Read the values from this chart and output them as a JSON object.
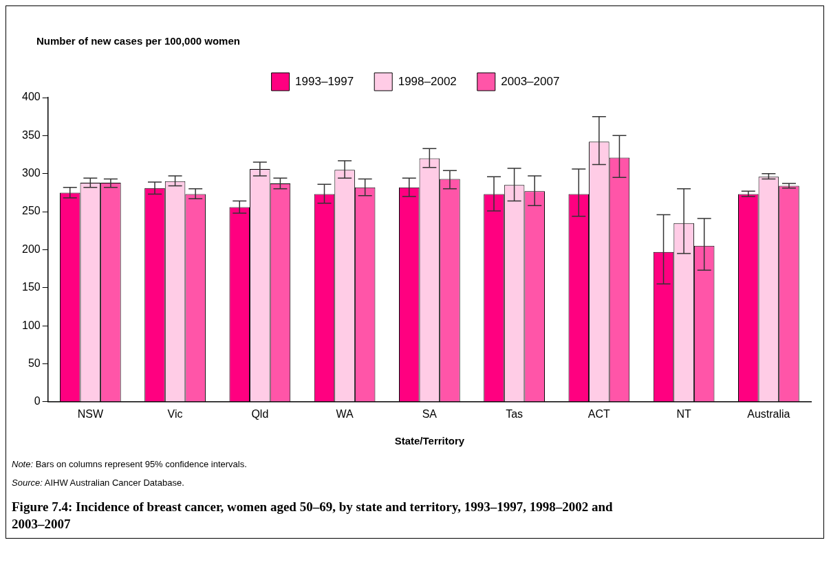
{
  "chart_data": {
    "type": "bar",
    "title": "Figure 7.4: Incidence of breast cancer, women aged 50–69, by state and territory, 1993–1997, 1998–2002 and 2003–2007",
    "ylabel": "Number of new cases per 100,000 women",
    "xlabel": "State/Territory",
    "categories": [
      "NSW",
      "Vic",
      "Qld",
      "WA",
      "SA",
      "Tas",
      "ACT",
      "NT",
      "Australia"
    ],
    "series": [
      {
        "name": "1993–1997",
        "color": "#ff0080",
        "values": [
          275,
          281,
          256,
          273,
          282,
          273,
          273,
          197,
          273
        ],
        "errors": [
          [
            268,
            282
          ],
          [
            273,
            289
          ],
          [
            248,
            264
          ],
          [
            261,
            286
          ],
          [
            270,
            294
          ],
          [
            251,
            296
          ],
          [
            244,
            306
          ],
          [
            155,
            246
          ],
          [
            270,
            277
          ]
        ]
      },
      {
        "name": "1998–2002",
        "color": "#ffcce6",
        "values": [
          288,
          290,
          306,
          305,
          320,
          285,
          342,
          235,
          296
        ],
        "errors": [
          [
            282,
            294
          ],
          [
            284,
            297
          ],
          [
            297,
            315
          ],
          [
            294,
            317
          ],
          [
            308,
            333
          ],
          [
            264,
            307
          ],
          [
            312,
            375
          ],
          [
            195,
            280
          ],
          [
            293,
            300
          ]
        ]
      },
      {
        "name": "2003–2007",
        "color": "#ff55a8",
        "values": [
          288,
          273,
          287,
          282,
          293,
          277,
          321,
          205,
          284
        ],
        "errors": [
          [
            282,
            293
          ],
          [
            267,
            280
          ],
          [
            280,
            294
          ],
          [
            271,
            293
          ],
          [
            280,
            304
          ],
          [
            258,
            297
          ],
          [
            295,
            350
          ],
          [
            173,
            241
          ],
          [
            281,
            287
          ]
        ]
      }
    ],
    "ylim": [
      0,
      400
    ],
    "yticks": [
      0,
      50,
      100,
      150,
      200,
      250,
      300,
      350,
      400
    ],
    "grid": false,
    "legend": "top",
    "annotations": [
      "Note: Bars on columns represent 95% confidence intervals.",
      "Source: AIHW Australian Cancer Database."
    ]
  }
}
